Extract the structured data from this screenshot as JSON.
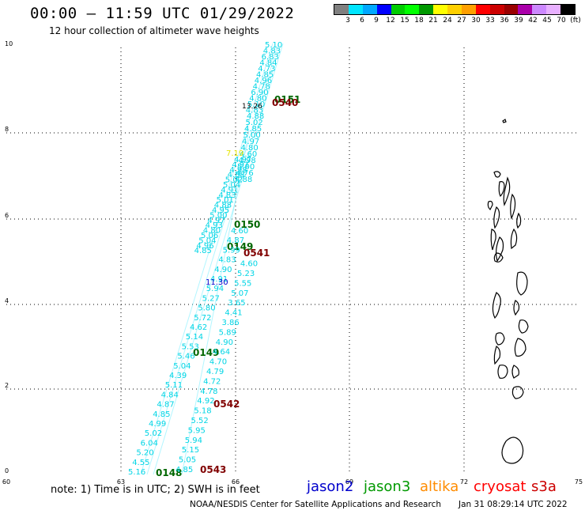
{
  "header": {
    "title": "00:00 – 11:59 UTC 01/29/2022",
    "subtitle": "12 hour collection of altimeter wave heights"
  },
  "legend": {
    "colors": [
      "#808080",
      "#00e5ff",
      "#00a8ff",
      "#0000ff",
      "#00cc00",
      "#00ff00",
      "#009900",
      "#ffff00",
      "#ffd000",
      "#ffa000",
      "#ff0000",
      "#cc0000",
      "#990000",
      "#aa00aa",
      "#cc88ff",
      "#e8b0ff",
      "#000000"
    ],
    "labels": [
      "3",
      "6",
      "9",
      "12",
      "15",
      "18",
      "21",
      "24",
      "27",
      "30",
      "33",
      "36",
      "39",
      "42",
      "45",
      "70",
      "(ft)"
    ]
  },
  "axes": {
    "y_ticks": [
      "10",
      "8",
      "6",
      "4",
      "2",
      "0"
    ],
    "x_ticks": [
      "60",
      "63",
      "66",
      "69",
      "72",
      "75"
    ]
  },
  "track_labels": [
    {
      "text": "0151",
      "color": "#006600"
    },
    {
      "text": "0540",
      "color": "#800000"
    },
    {
      "text": "0150",
      "color": "#006600"
    },
    {
      "text": "0149",
      "color": "#006600"
    },
    {
      "text": "0541",
      "color": "#800000"
    },
    {
      "text": "0149",
      "color": "#006600"
    },
    {
      "text": "0542",
      "color": "#800000"
    },
    {
      "text": "0148",
      "color": "#006600"
    },
    {
      "text": "0543",
      "color": "#800000"
    }
  ],
  "wave_values": {
    "left_track": [
      "5.16",
      "4.55",
      "5.20",
      "6.04",
      "5.02",
      "4.99",
      "4.85",
      "4.87",
      "4.84",
      "5.11",
      "4.39",
      "5.04",
      "5.46",
      "5.53",
      "5.14",
      "4.62",
      "5.72",
      "5.80",
      "5.27",
      "5.94",
      "4.91",
      "4.90",
      "4.83",
      "5.99",
      "4.87",
      "4.60"
    ],
    "right_track": [
      "4.85",
      "5.05",
      "5.15",
      "5.94",
      "5.95",
      "5.52",
      "5.18",
      "4.92",
      "4.78",
      "4.72",
      "4.79",
      "4.70",
      "4.64",
      "4.90",
      "5.89",
      "3.86",
      "4.41",
      "3.65",
      "5.07",
      "5.55",
      "5.23",
      "4.60"
    ],
    "highlight_blue": "11.30",
    "top_values": [
      "5.10",
      "4.83",
      "6.83",
      "4.84",
      "4.73",
      "4.85",
      "4.96",
      "4.78",
      "6.90",
      "4.80",
      "5.10",
      "4.83"
    ],
    "upper_mid_values": [
      "4.88",
      "5.02",
      "4.85",
      "5.00",
      "4.97",
      "4.80",
      "4.60",
      "4.98",
      "5.00",
      "4.76",
      "4.88"
    ],
    "dense_values": [
      "4.97",
      "4.91",
      "4.98",
      "4.88",
      "5.02",
      "5.04",
      "4.91",
      "4.83",
      "5.01",
      "4.88",
      "4.95",
      "5.00",
      "4.97",
      "4.93",
      "4.80",
      "5.06",
      "5.04",
      "4.96",
      "4.85"
    ],
    "black_label": "13.26",
    "yellow_label": "7.19"
  },
  "footer": {
    "note": "note: 1) Time is in UTC; 2) SWH is in feet",
    "satellites": [
      {
        "name": "jason2",
        "color": "#0000cc"
      },
      {
        "name": "jason3",
        "color": "#009900"
      },
      {
        "name": "altika",
        "color": "#ff8c00"
      },
      {
        "name": "cryosat",
        "color": "#ff0000"
      },
      {
        "name": "s3a",
        "color": "#cc0000"
      }
    ],
    "credit": "NOAA/NESDIS Center for Satellite Applications and Research",
    "timestamp": "Jan 31 08:29:14 UTC 2022"
  }
}
